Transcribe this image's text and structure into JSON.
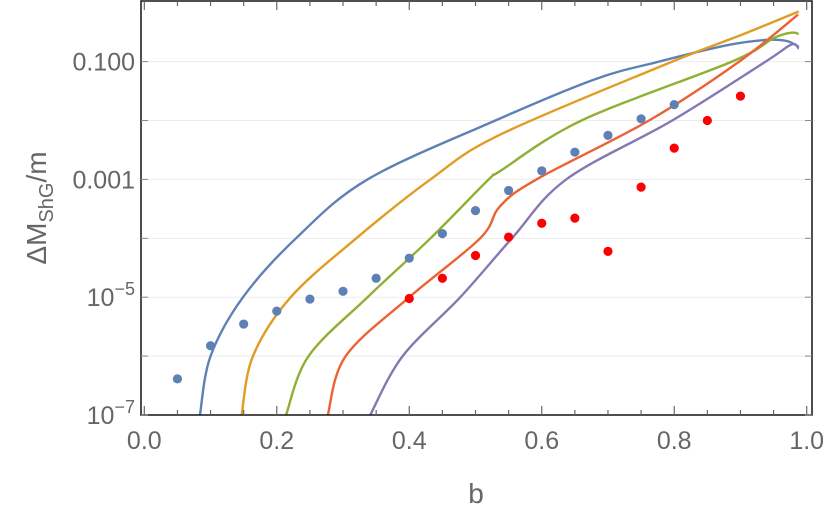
{
  "chart_data": {
    "type": "line",
    "title": "",
    "xlabel": "b",
    "ylabel": {
      "main": "ΔM",
      "sub": "ShG",
      "tail": "/m"
    },
    "xlim": [
      -0.005,
      1.008
    ],
    "ylim": [
      1e-07,
      1.07
    ],
    "yscale": "log",
    "grid": "horizontal at decades",
    "x_ticks": [
      "0.0",
      "0.2",
      "0.4",
      "0.6",
      "0.8",
      "1.0"
    ],
    "y_ticks": [
      {
        "value": 1e-07,
        "base": "10",
        "exp": "−7"
      },
      {
        "value": 1e-05,
        "base": "10",
        "exp": "−5"
      },
      {
        "value": 0.001,
        "text": "0.001"
      },
      {
        "value": 0.1,
        "text": "0.100"
      }
    ],
    "curves": [
      {
        "color": "#5E81B5",
        "points": [
          [
            0.084,
            1e-07
          ],
          [
            0.1,
            1e-06
          ],
          [
            0.149,
            1e-05
          ],
          [
            0.229,
            0.0001
          ],
          [
            0.337,
            0.001
          ],
          [
            0.53,
            0.01
          ],
          [
            0.68,
            0.05
          ],
          [
            0.777,
            0.1
          ],
          [
            0.88,
            0.19
          ],
          [
            0.94,
            0.234
          ],
          [
            0.97,
            0.224
          ],
          [
            0.988,
            0.178
          ]
        ]
      },
      {
        "color": "#E19C24",
        "points": [
          [
            0.147,
            1e-07
          ],
          [
            0.164,
            1e-06
          ],
          [
            0.221,
            1e-05
          ],
          [
            0.32,
            0.0001
          ],
          [
            0.432,
            0.001
          ],
          [
            0.537,
            0.00575
          ],
          [
            0.797,
            0.1
          ],
          [
            0.9,
            0.28
          ],
          [
            0.988,
            0.71
          ]
        ]
      },
      {
        "color": "#8FB032",
        "points": [
          [
            0.214,
            1e-07
          ],
          [
            0.248,
            1e-06
          ],
          [
            0.337,
            1e-05
          ],
          [
            0.432,
            0.0001
          ],
          [
            0.52,
            0.001
          ],
          [
            0.537,
            0.00138
          ],
          [
            0.66,
            0.01
          ],
          [
            0.887,
            0.1
          ],
          [
            0.95,
            0.25
          ],
          [
            0.977,
            0.31
          ],
          [
            0.988,
            0.295
          ]
        ]
      },
      {
        "color": "#EB6235",
        "points": [
          [
            0.277,
            1e-07
          ],
          [
            0.304,
            1e-06
          ],
          [
            0.4,
            1e-05
          ],
          [
            0.507,
            0.0001
          ],
          [
            0.537,
            0.00035
          ],
          [
            0.592,
            0.001
          ],
          [
            0.762,
            0.01
          ],
          [
            0.898,
            0.1
          ],
          [
            0.987,
            0.63
          ]
        ]
      },
      {
        "color": "#8778B3",
        "points": [
          [
            0.341,
            1e-07
          ],
          [
            0.39,
            1e-06
          ],
          [
            0.477,
            1e-05
          ],
          [
            0.555,
            0.0001
          ],
          [
            0.637,
            0.001
          ],
          [
            0.797,
            0.01
          ],
          [
            0.938,
            0.1
          ],
          [
            0.977,
            0.195
          ],
          [
            0.988,
            0.166
          ]
        ]
      }
    ],
    "scatter": [
      {
        "color": "#5E81B5",
        "x": [
          0.05,
          0.1,
          0.15,
          0.2,
          0.25,
          0.3,
          0.35,
          0.4,
          0.45,
          0.5,
          0.55,
          0.6,
          0.65,
          0.7,
          0.75,
          0.8
        ],
        "y": [
          4.1e-07,
          1.5e-06,
          3.5e-06,
          5.8e-06,
          9.3e-06,
          1.26e-05,
          2.1e-05,
          4.6e-05,
          0.00012,
          0.000295,
          0.00065,
          0.0014,
          0.0029,
          0.0056,
          0.0107,
          0.0186
        ]
      },
      {
        "color": "#FF0000",
        "x": [
          0.4,
          0.45,
          0.5,
          0.55,
          0.6,
          0.65,
          0.7,
          0.75,
          0.8,
          0.85,
          0.9
        ],
        "y": [
          9.5e-06,
          2.1e-05,
          5.1e-05,
          0.000105,
          0.00018,
          0.00022,
          6e-05,
          0.00074,
          0.0034,
          0.01,
          0.026
        ]
      }
    ]
  }
}
